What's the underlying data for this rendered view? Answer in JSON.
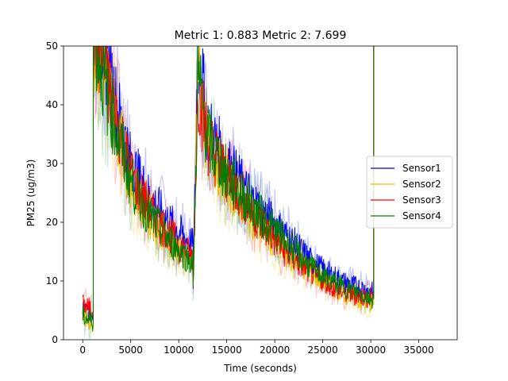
{
  "chart_data": {
    "type": "line",
    "title": "Metric 1: 0.883   Metric 2: 7.699",
    "xlabel": "Time (seconds)",
    "ylabel": "PM25 (ug/m3)",
    "xlim": [
      -2000,
      39000
    ],
    "ylim": [
      0,
      50
    ],
    "xticks": [
      0,
      5000,
      10000,
      15000,
      20000,
      25000,
      30000,
      35000
    ],
    "yticks": [
      0,
      10,
      20,
      30,
      40,
      50
    ],
    "legend_position": "center-right",
    "grid": false,
    "series": [
      {
        "name": "Sensor1",
        "color": "#0000ff",
        "points": [
          [
            0,
            5
          ],
          [
            1100,
            4
          ],
          [
            1100,
            55
          ],
          [
            1500,
            52
          ],
          [
            2500,
            48
          ],
          [
            3500,
            40
          ],
          [
            5000,
            30
          ],
          [
            7000,
            24
          ],
          [
            9000,
            20
          ],
          [
            11500,
            16
          ],
          [
            11500,
            10
          ],
          [
            12000,
            50
          ],
          [
            13000,
            36
          ],
          [
            15000,
            30
          ],
          [
            18000,
            23
          ],
          [
            21000,
            18
          ],
          [
            24000,
            13
          ],
          [
            27000,
            10
          ],
          [
            30300,
            8
          ],
          [
            30300,
            55
          ]
        ]
      },
      {
        "name": "Sensor2",
        "color": "#e6c200",
        "points": [
          [
            0,
            4
          ],
          [
            1100,
            3
          ],
          [
            1100,
            52
          ],
          [
            1500,
            50
          ],
          [
            2500,
            45
          ],
          [
            3500,
            37
          ],
          [
            5000,
            27
          ],
          [
            7000,
            21
          ],
          [
            9000,
            17
          ],
          [
            11500,
            13
          ],
          [
            11500,
            9
          ],
          [
            12000,
            47
          ],
          [
            13000,
            33
          ],
          [
            15000,
            27
          ],
          [
            18000,
            20
          ],
          [
            21000,
            15
          ],
          [
            24000,
            11
          ],
          [
            27000,
            8
          ],
          [
            30300,
            6
          ],
          [
            30300,
            55
          ]
        ]
      },
      {
        "name": "Sensor3",
        "color": "#ff0000",
        "points": [
          [
            0,
            6
          ],
          [
            1100,
            5
          ],
          [
            1100,
            53
          ],
          [
            1500,
            51
          ],
          [
            2500,
            44
          ],
          [
            3500,
            38
          ],
          [
            5000,
            28
          ],
          [
            7000,
            22
          ],
          [
            9000,
            18
          ],
          [
            11500,
            14
          ],
          [
            11500,
            10
          ],
          [
            12000,
            43
          ],
          [
            13000,
            34
          ],
          [
            15000,
            28
          ],
          [
            18000,
            21
          ],
          [
            21000,
            15
          ],
          [
            24000,
            11
          ],
          [
            27000,
            8
          ],
          [
            30300,
            7
          ],
          [
            30300,
            55
          ]
        ]
      },
      {
        "name": "Sensor4",
        "color": "#008000",
        "points": [
          [
            0,
            4
          ],
          [
            1100,
            3
          ],
          [
            1100,
            52
          ],
          [
            1500,
            50
          ],
          [
            2500,
            42
          ],
          [
            3500,
            36
          ],
          [
            5000,
            27
          ],
          [
            7000,
            21
          ],
          [
            9000,
            17
          ],
          [
            11500,
            13
          ],
          [
            11500,
            9
          ],
          [
            12000,
            45
          ],
          [
            13000,
            34
          ],
          [
            15000,
            28
          ],
          [
            18000,
            22
          ],
          [
            21000,
            17
          ],
          [
            24000,
            12
          ],
          [
            27000,
            9
          ],
          [
            30300,
            7
          ],
          [
            30300,
            55
          ]
        ]
      }
    ],
    "bands": [
      {
        "series": "Sensor1",
        "color": "#0000ff",
        "spread": 8
      },
      {
        "series": "Sensor2",
        "color": "#e6c200",
        "spread": 8
      },
      {
        "series": "Sensor3",
        "color": "#ff0000",
        "spread": 8
      },
      {
        "series": "Sensor4",
        "color": "#008000",
        "spread": 8
      }
    ]
  }
}
